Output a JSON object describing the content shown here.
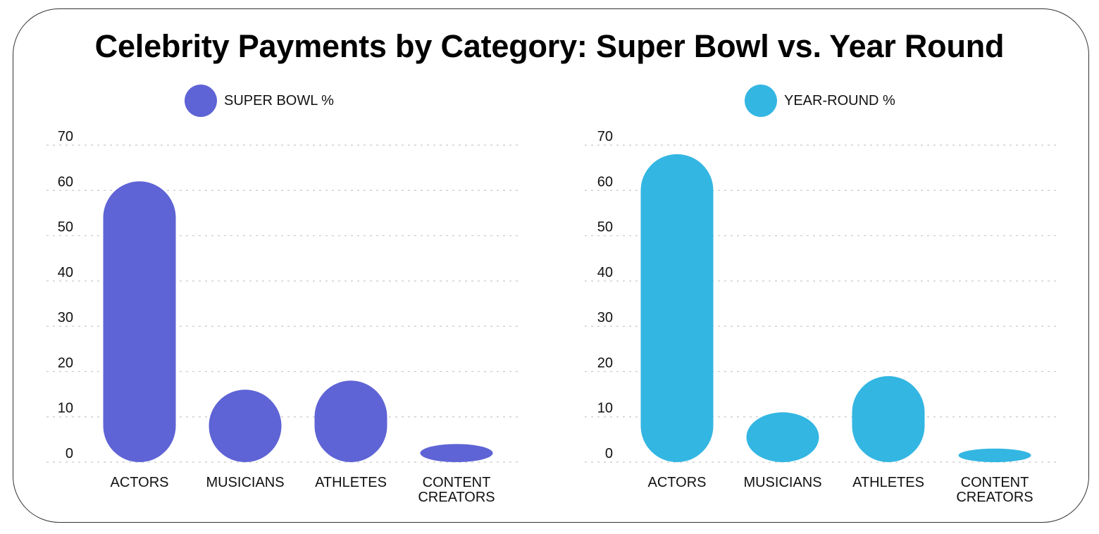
{
  "chart_data": [
    {
      "type": "bar",
      "title": "Celebrity Payments by Category: Super Bowl vs. Year Round",
      "legend": "SUPER BOWL %",
      "color": "#5E63D5",
      "categories": [
        "ACTORS",
        "MUSICIANS",
        "ATHLETES",
        "CONTENT CREATORS"
      ],
      "values": [
        62,
        16,
        18,
        4
      ],
      "yticks": [
        0,
        10,
        20,
        30,
        40,
        50,
        60,
        70
      ],
      "ylim": [
        0,
        70
      ],
      "grid": true,
      "xlabel": "",
      "ylabel": ""
    },
    {
      "type": "bar",
      "legend": "YEAR-ROUND %",
      "color": "#33B6E2",
      "categories": [
        "ACTORS",
        "MUSICIANS",
        "ATHLETES",
        "CONTENT CREATORS"
      ],
      "values": [
        68,
        11,
        19,
        3
      ],
      "yticks": [
        0,
        10,
        20,
        30,
        40,
        50,
        60,
        70
      ],
      "ylim": [
        0,
        70
      ],
      "grid": true,
      "xlabel": "",
      "ylabel": ""
    }
  ],
  "header": {
    "title": "Celebrity Payments by Category: Super Bowl vs. Year Round"
  }
}
